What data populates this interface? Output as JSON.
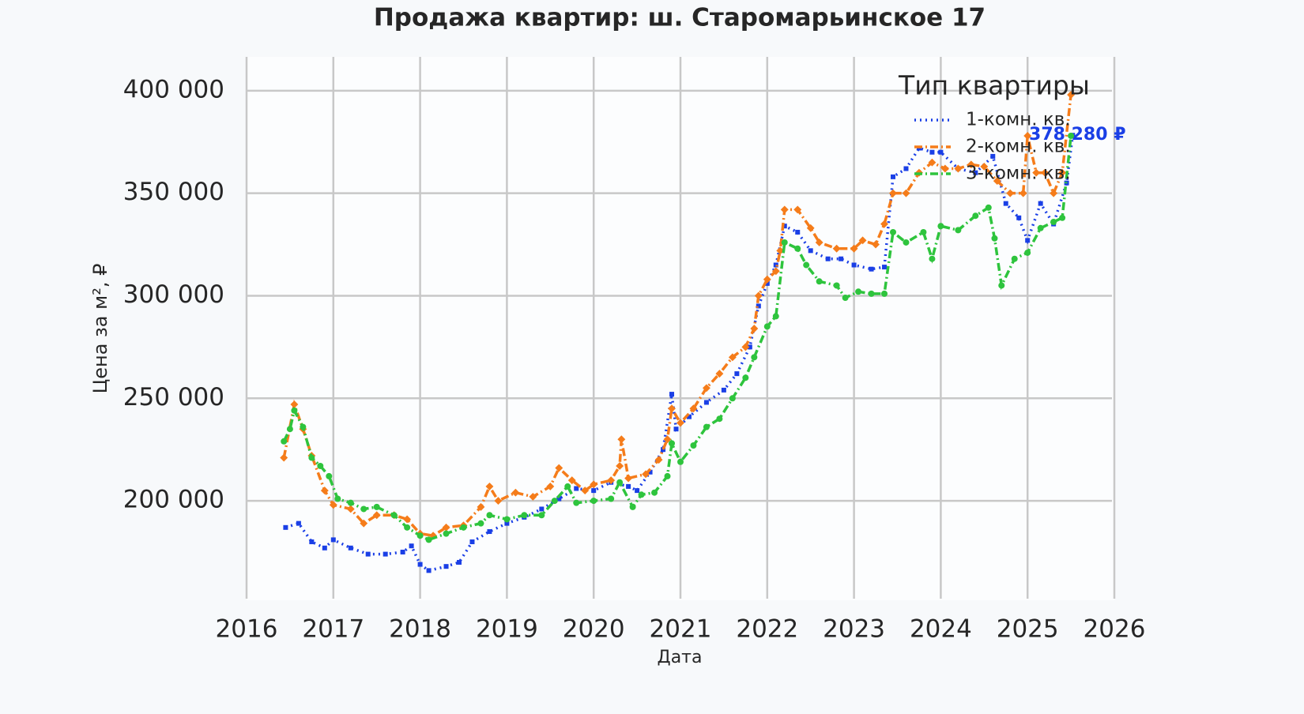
{
  "chart_data": {
    "type": "line",
    "title": "Продажа квартир: ш. Старомарьинское 17",
    "x_label": "Дата",
    "y_label": "Цена за м², ₽",
    "xlim": [
      2016,
      2026
    ],
    "xticks": [
      2016,
      2017,
      2018,
      2019,
      2020,
      2021,
      2022,
      2023,
      2024,
      2025,
      2026
    ],
    "ylim": [
      151500,
      416500
    ],
    "yticks": [
      {
        "value": 200000,
        "label": "200 000"
      },
      {
        "value": 250000,
        "label": "250 000"
      },
      {
        "value": 300000,
        "label": "300 000"
      },
      {
        "value": 350000,
        "label": "350 000"
      },
      {
        "value": 400000,
        "label": "400 000"
      }
    ],
    "grid": true,
    "legend": {
      "title": "Тип квартиры",
      "position": "upper right"
    },
    "series": [
      {
        "name": "1-комн. кв.",
        "color": "#1a3fe6",
        "style": "dotted",
        "end_label": "378 280 ₽",
        "x": [
          2016.45,
          2016.6,
          2016.75,
          2016.9,
          2017.0,
          2017.2,
          2017.4,
          2017.6,
          2017.8,
          2017.9,
          2018.0,
          2018.1,
          2018.3,
          2018.45,
          2018.6,
          2018.8,
          2019.0,
          2019.2,
          2019.4,
          2019.6,
          2019.8,
          2020.0,
          2020.2,
          2020.4,
          2020.5,
          2020.65,
          2020.8,
          2020.9,
          2020.95,
          2021.1,
          2021.3,
          2021.5,
          2021.65,
          2021.8,
          2021.9,
          2022.0,
          2022.1,
          2022.2,
          2022.35,
          2022.5,
          2022.7,
          2022.85,
          2023.0,
          2023.2,
          2023.35,
          2023.45,
          2023.6,
          2023.75,
          2023.9,
          2024.0,
          2024.2,
          2024.4,
          2024.6,
          2024.75,
          2024.9,
          2025.0,
          2025.15,
          2025.3,
          2025.45,
          2025.52
        ],
        "values": [
          187000,
          189000,
          180000,
          177000,
          181000,
          177000,
          174000,
          174000,
          175000,
          178000,
          169000,
          166000,
          168000,
          170000,
          180000,
          185000,
          189000,
          192000,
          196000,
          201000,
          206000,
          205000,
          209000,
          207000,
          205000,
          214000,
          225000,
          252000,
          235000,
          241000,
          248000,
          254000,
          262000,
          275000,
          295000,
          306000,
          315000,
          334000,
          331000,
          322000,
          318000,
          318000,
          315000,
          313000,
          314000,
          358000,
          362000,
          372000,
          370000,
          370000,
          362000,
          360000,
          368000,
          345000,
          338000,
          327000,
          345000,
          335000,
          355000,
          378280
        ]
      },
      {
        "name": "2-комн. кв.",
        "color": "#f57c1a",
        "style": "dashdot",
        "x": [
          2016.43,
          2016.55,
          2016.65,
          2016.75,
          2016.9,
          2017.0,
          2017.2,
          2017.35,
          2017.5,
          2017.7,
          2017.85,
          2018.0,
          2018.15,
          2018.3,
          2018.5,
          2018.7,
          2018.8,
          2018.9,
          2019.1,
          2019.3,
          2019.5,
          2019.6,
          2019.75,
          2019.9,
          2020.0,
          2020.2,
          2020.3,
          2020.32,
          2020.4,
          2020.6,
          2020.75,
          2020.85,
          2020.9,
          2021.0,
          2021.15,
          2021.3,
          2021.45,
          2021.6,
          2021.75,
          2021.85,
          2021.9,
          2022.0,
          2022.1,
          2022.15,
          2022.2,
          2022.35,
          2022.5,
          2022.6,
          2022.8,
          2023.0,
          2023.1,
          2023.25,
          2023.35,
          2023.45,
          2023.6,
          2023.75,
          2023.9,
          2024.05,
          2024.2,
          2024.35,
          2024.5,
          2024.65,
          2024.8,
          2024.95,
          2025.0,
          2025.1,
          2025.2,
          2025.3,
          2025.4,
          2025.5
        ],
        "values": [
          221000,
          247000,
          235000,
          222000,
          205000,
          198000,
          196000,
          189000,
          193000,
          193000,
          191000,
          184000,
          183000,
          187000,
          188000,
          197000,
          207000,
          200000,
          204000,
          202000,
          207000,
          216000,
          210000,
          205000,
          208000,
          210000,
          217000,
          230000,
          211000,
          213000,
          220000,
          230000,
          245000,
          238000,
          245000,
          255000,
          262000,
          270000,
          275000,
          284000,
          300000,
          308000,
          312000,
          322000,
          342000,
          342000,
          333000,
          326000,
          323000,
          323000,
          327000,
          325000,
          335000,
          350000,
          350000,
          360000,
          365000,
          362000,
          362000,
          364000,
          363000,
          356000,
          350000,
          350000,
          378000,
          360000,
          360000,
          350000,
          360000,
          398000
        ]
      },
      {
        "name": "3-комн. кв.",
        "color": "#2ec43d",
        "style": "dashdot",
        "x": [
          2016.43,
          2016.5,
          2016.55,
          2016.65,
          2016.75,
          2016.85,
          2016.95,
          2017.05,
          2017.2,
          2017.35,
          2017.5,
          2017.7,
          2017.85,
          2018.0,
          2018.1,
          2018.3,
          2018.5,
          2018.7,
          2018.8,
          2019.0,
          2019.2,
          2019.4,
          2019.55,
          2019.7,
          2019.8,
          2020.0,
          2020.2,
          2020.3,
          2020.45,
          2020.55,
          2020.7,
          2020.85,
          2020.9,
          2021.0,
          2021.15,
          2021.3,
          2021.45,
          2021.6,
          2021.75,
          2021.85,
          2022.0,
          2022.1,
          2022.2,
          2022.35,
          2022.45,
          2022.6,
          2022.8,
          2022.9,
          2023.05,
          2023.2,
          2023.35,
          2023.45,
          2023.6,
          2023.8,
          2023.9,
          2024.0,
          2024.2,
          2024.4,
          2024.55,
          2024.62,
          2024.7,
          2024.85,
          2025.0,
          2025.15,
          2025.3,
          2025.4,
          2025.5
        ],
        "values": [
          229000,
          235000,
          244000,
          236000,
          221000,
          217000,
          212000,
          201000,
          199000,
          196000,
          197000,
          193000,
          187000,
          183000,
          181000,
          184000,
          187000,
          189000,
          193000,
          191000,
          193000,
          193000,
          200000,
          207000,
          199000,
          200000,
          201000,
          209000,
          197000,
          203000,
          204000,
          212000,
          228000,
          219000,
          227000,
          236000,
          240000,
          250000,
          260000,
          270000,
          285000,
          290000,
          326000,
          323000,
          315000,
          307000,
          305000,
          299000,
          302000,
          301000,
          301000,
          331000,
          326000,
          331000,
          318000,
          334000,
          332000,
          339000,
          343000,
          328000,
          305000,
          318000,
          321000,
          333000,
          336000,
          338000,
          378000
        ]
      }
    ]
  }
}
